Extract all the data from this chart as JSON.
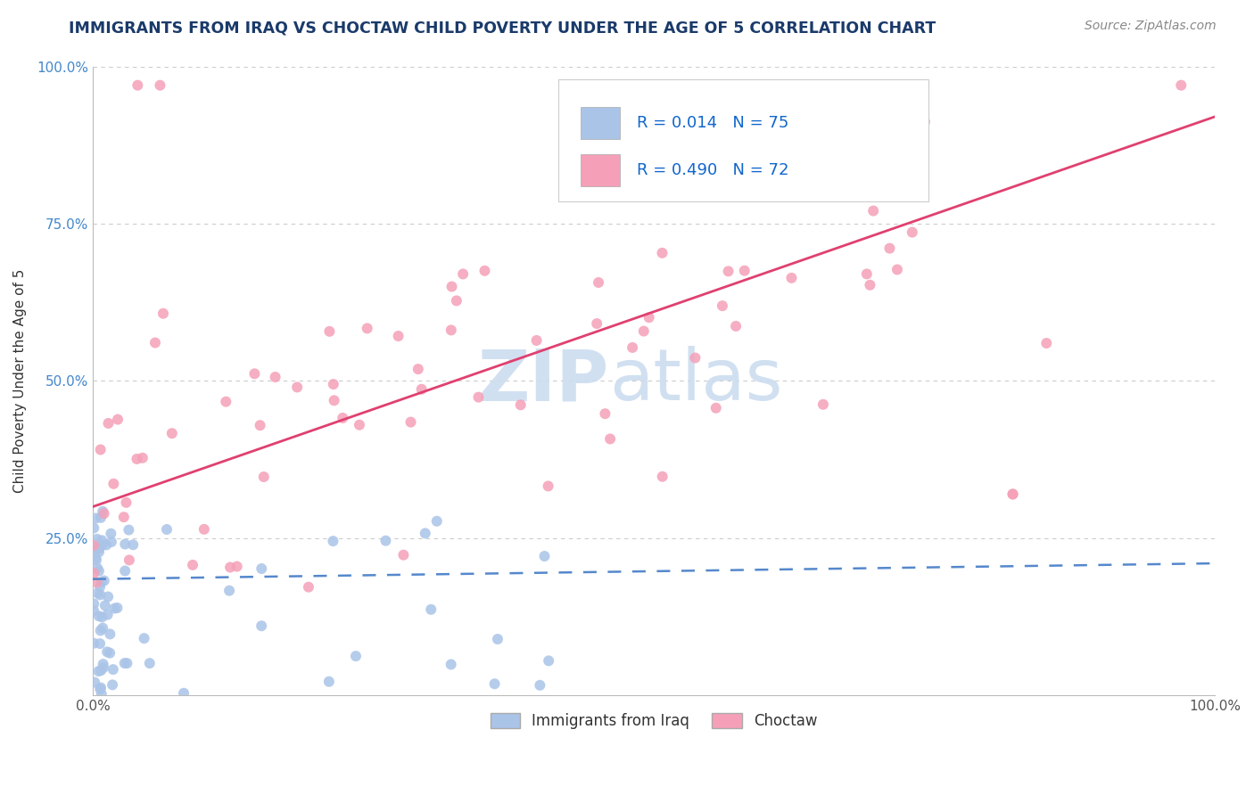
{
  "title": "IMMIGRANTS FROM IRAQ VS CHOCTAW CHILD POVERTY UNDER THE AGE OF 5 CORRELATION CHART",
  "source": "Source: ZipAtlas.com",
  "ylabel": "Child Poverty Under the Age of 5",
  "xlim": [
    0,
    1
  ],
  "ylim": [
    0,
    1
  ],
  "series1_color": "#aac4e8",
  "series2_color": "#f5a0b8",
  "trend1_color": "#5588cc",
  "trend2_color": "#e04070",
  "watermark_zip": "ZIP",
  "watermark_atlas": "atlas",
  "watermark_color": "#ccddf0",
  "title_color": "#1a3a6a",
  "source_color": "#888888",
  "background_color": "#ffffff",
  "grid_color": "#cccccc",
  "series1_name": "Immigrants from Iraq",
  "series2_name": "Choctaw",
  "legend_text1": "R = 0.014   N = 75",
  "legend_text2": "R = 0.490   N = 72",
  "tick_color_y": "#4488cc",
  "tick_color_x": "#555555",
  "iraq_trend_intercept": 0.185,
  "iraq_trend_slope": 0.025,
  "choctaw_trend_intercept": 0.3,
  "choctaw_trend_slope": 0.62
}
